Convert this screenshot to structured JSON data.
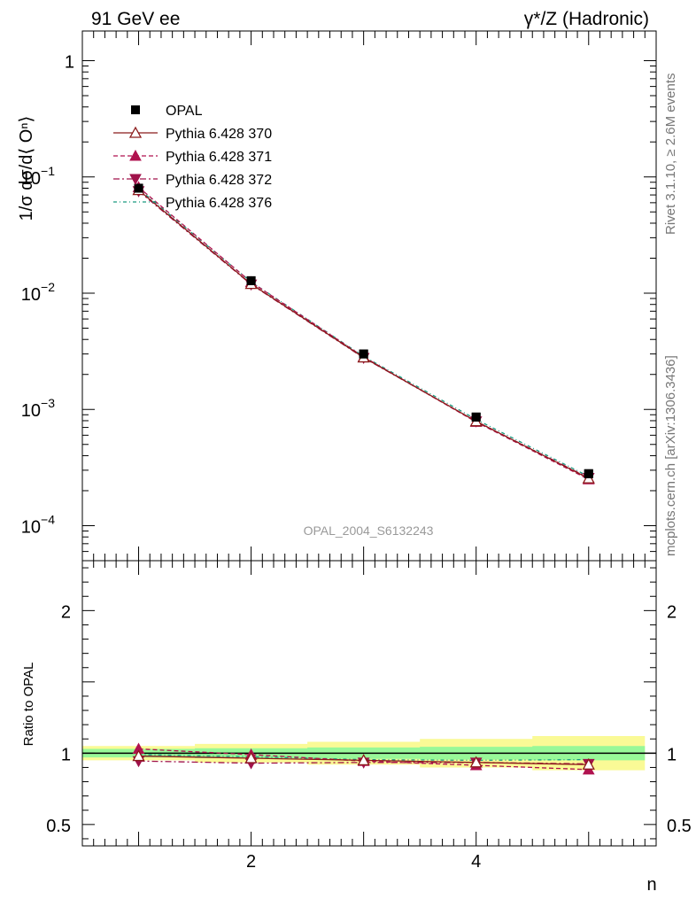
{
  "header": {
    "left": "91 GeV ee",
    "right": "γ*/Z (Hadronic)"
  },
  "side_labels": {
    "rivet": "Rivet 3.1.10, ≥ 2.6M events",
    "mcplots": "mcplots.cern.ch [arXiv:1306.3436]"
  },
  "watermark": "OPAL_2004_S6132243",
  "chart_data": {
    "type": "line",
    "x": [
      1,
      2,
      3,
      4,
      5
    ],
    "xlabel": "n",
    "xlim": [
      0.5,
      5.6
    ],
    "x_ticks": [
      "2",
      "4"
    ],
    "main": {
      "ylabel": "1/σ dσ/d⟨ Oⁿ⟩",
      "yscale": "log",
      "ylim": [
        5e-05,
        1.8
      ],
      "y_tick_labels": [
        {
          "mantissa": "10",
          "exp": "−4",
          "value": 0.0001
        },
        {
          "mantissa": "10",
          "exp": "−3",
          "value": 0.001
        },
        {
          "mantissa": "10",
          "exp": "−2",
          "value": 0.01
        },
        {
          "mantissa": "10",
          "exp": "−1",
          "value": 0.1
        },
        {
          "mantissa": "1",
          "exp": "",
          "value": 1
        }
      ]
    },
    "ratio": {
      "ylabel": "Ratio to OPAL",
      "ylim": [
        0.35,
        2.35
      ],
      "y_ticks": [
        "0.5",
        "1",
        "2"
      ],
      "band_inner": [
        0.03,
        0.035,
        0.04,
        0.045,
        0.05
      ],
      "band_outer": [
        0.05,
        0.065,
        0.08,
        0.1,
        0.12
      ]
    },
    "legend_position": "top-left",
    "series": [
      {
        "name": "OPAL",
        "style": "data",
        "color": "#000000",
        "values": [
          0.08,
          0.0128,
          0.003,
          0.00086,
          0.00028
        ],
        "ratio": [
          1,
          1,
          1,
          1,
          1
        ]
      },
      {
        "name": "Pythia 6.428 370",
        "style": "solid",
        "marker": "triangle-up-open",
        "color": "#8b1a1a",
        "values": [
          0.077,
          0.012,
          0.0028,
          0.00079,
          0.000255
        ],
        "ratio": [
          0.98,
          0.965,
          0.95,
          0.935,
          0.92
        ]
      },
      {
        "name": "Pythia 6.428 371",
        "style": "dashed",
        "marker": "triangle-up-filled",
        "color": "#b0124f",
        "values": [
          0.0815,
          0.01245,
          0.00283,
          0.00078,
          0.00025
        ],
        "ratio": [
          1.03,
          0.99,
          0.945,
          0.915,
          0.885
        ]
      },
      {
        "name": "Pythia 6.428 372",
        "style": "dashdot",
        "marker": "triangle-down-filled",
        "color": "#a0124a",
        "values": [
          0.0755,
          0.0119,
          0.00278,
          0.00079,
          0.000258
        ],
        "ratio": [
          0.945,
          0.93,
          0.935,
          0.935,
          0.925
        ]
      },
      {
        "name": "Pythia 6.428 376",
        "style": "dashdot-teal",
        "marker": "none",
        "color": "#1a9a80",
        "values": [
          0.079,
          0.0125,
          0.00286,
          0.00082,
          0.000265
        ],
        "ratio": [
          0.99,
          0.975,
          0.955,
          0.95,
          0.955
        ]
      }
    ]
  }
}
